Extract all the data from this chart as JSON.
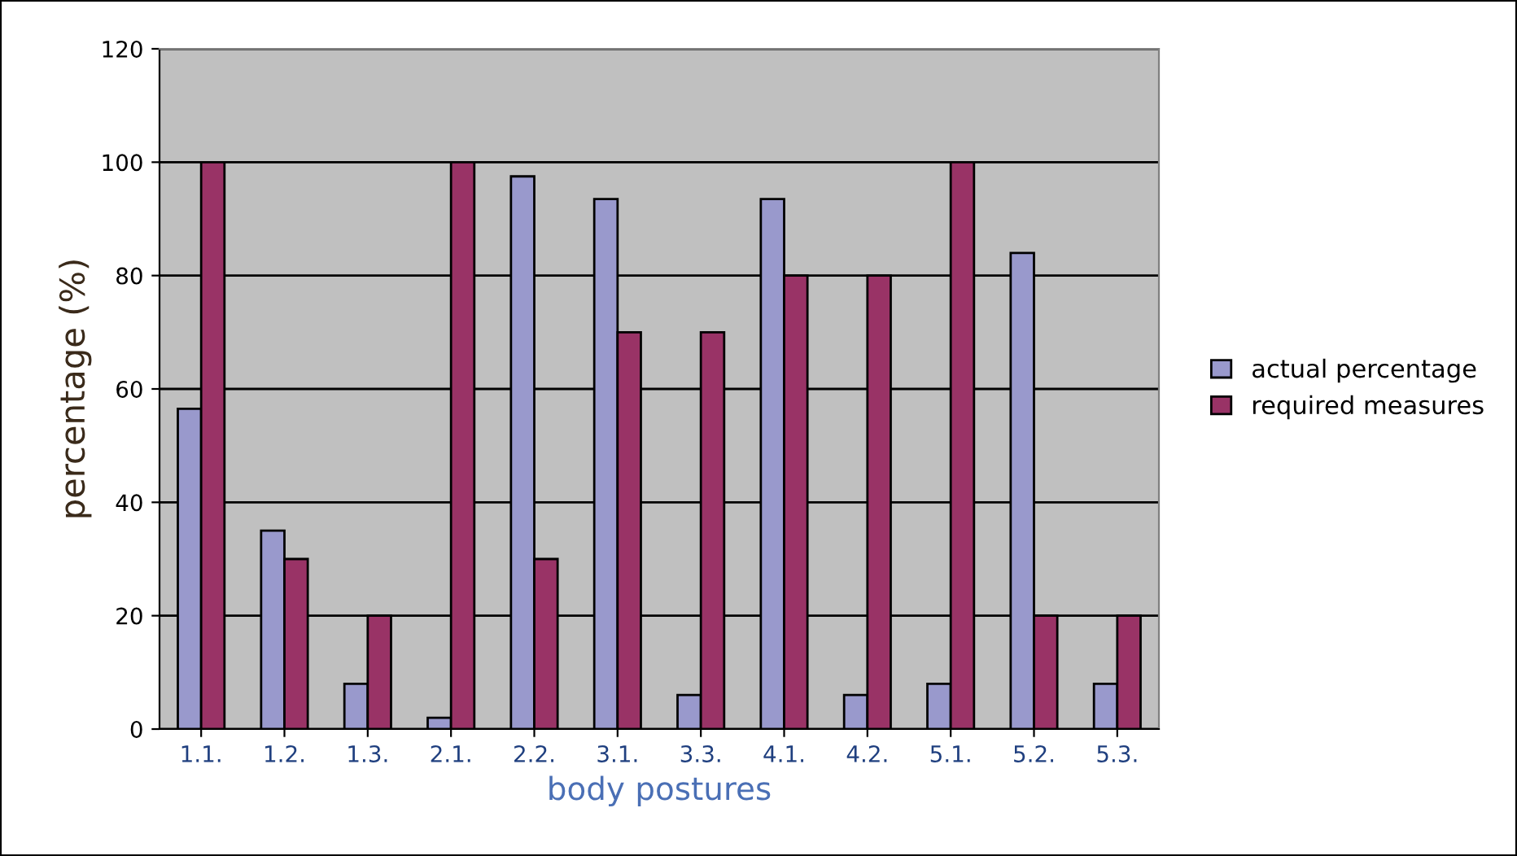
{
  "chart_data": {
    "type": "bar",
    "xlabel": "body postures",
    "ylabel": "percentage (%)",
    "categories": [
      "1.1.",
      "1.2.",
      "1.3.",
      "2.1.",
      "2.2.",
      "3.1.",
      "3.3.",
      "4.1.",
      "4.2.",
      "5.1.",
      "5.2.",
      "5.3."
    ],
    "series": [
      {
        "name": "actual percentage",
        "color": "#9999cc",
        "values": [
          56.5,
          35,
          8,
          2,
          97.5,
          93.5,
          6,
          93.5,
          6,
          8,
          84,
          8
        ]
      },
      {
        "name": "required measures",
        "color": "#993366",
        "values": [
          100,
          30,
          20,
          100,
          30,
          70,
          70,
          80,
          80,
          100,
          20,
          20
        ]
      }
    ],
    "ylim": [
      0,
      120
    ],
    "yticks": [
      0,
      20,
      40,
      60,
      80,
      100,
      120
    ],
    "grid": "y",
    "legend": "right"
  }
}
